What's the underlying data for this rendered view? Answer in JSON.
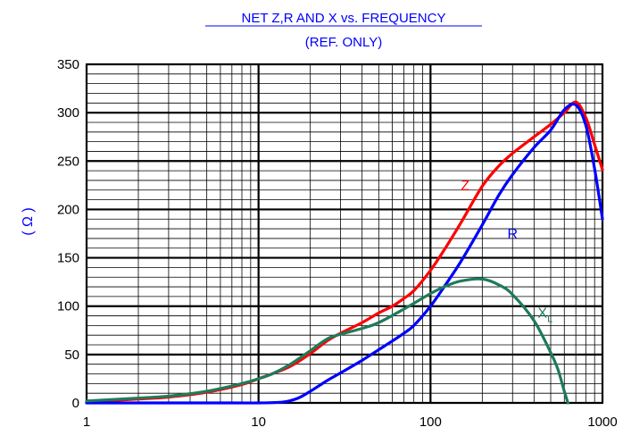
{
  "chart_data": {
    "type": "line",
    "title": "NET Z,R AND X vs. FREQUENCY",
    "subtitle": "(REF. ONLY)",
    "xlabel": "",
    "ylabel": "( Ω )",
    "xscale": "log",
    "xlim": [
      1,
      1000
    ],
    "ylim": [
      0,
      350
    ],
    "x_ticks": [
      1,
      10,
      100,
      1000
    ],
    "y_ticks": [
      0,
      50,
      100,
      150,
      200,
      250,
      300,
      350
    ],
    "grid": {
      "major": true,
      "minor": true
    },
    "legend": "none",
    "title_color": "#0000ff",
    "ylabel_color": "#0000ff",
    "series": [
      {
        "name": "Z",
        "color": "#ff0000",
        "x": [
          1,
          2,
          3,
          5,
          8,
          10,
          15,
          20,
          25,
          30,
          40,
          50,
          60,
          70,
          80,
          100,
          120,
          150,
          200,
          250,
          300,
          400,
          500,
          600,
          700,
          800,
          900,
          1000
        ],
        "y": [
          1,
          4,
          6,
          11,
          19,
          25,
          37,
          51,
          64,
          72,
          83,
          93,
          100,
          108,
          116,
          137,
          158,
          186,
          224,
          245,
          258,
          275,
          288,
          300,
          311,
          295,
          267,
          241
        ]
      },
      {
        "name": "R",
        "color": "#0000ff",
        "x": [
          1,
          5,
          10,
          14,
          17,
          20,
          25,
          30,
          40,
          50,
          60,
          70,
          80,
          100,
          120,
          150,
          200,
          250,
          300,
          400,
          500,
          600,
          700,
          800,
          900,
          1000
        ],
        "y": [
          0,
          0,
          0,
          1,
          5,
          12,
          23,
          31,
          44,
          55,
          64,
          72,
          80,
          100,
          120,
          146,
          184,
          215,
          236,
          264,
          282,
          303,
          308,
          287,
          242,
          190
        ]
      },
      {
        "name": "XL",
        "color": "#1e7b5a",
        "x": [
          1,
          2,
          3,
          5,
          8,
          10,
          12,
          15,
          20,
          25,
          30,
          40,
          50,
          70,
          100,
          120,
          150,
          200,
          250,
          300,
          400,
          500,
          550,
          600,
          630
        ],
        "y": [
          2,
          5,
          7,
          12,
          20,
          25,
          30,
          39,
          54,
          66,
          71,
          77,
          83,
          97,
          113,
          120,
          126,
          128,
          122,
          112,
          85,
          52,
          35,
          12,
          0
        ]
      }
    ],
    "annotations": [
      {
        "text": "Z",
        "series": "Z",
        "x": 150,
        "y": 220,
        "color": "#ff0000"
      },
      {
        "text": "R",
        "series": "R",
        "x": 280,
        "y": 170,
        "color": "#0000ff"
      },
      {
        "text": "X",
        "sub": "L",
        "series": "XL",
        "x": 420,
        "y": 88,
        "color": "#1e7b5a"
      }
    ]
  }
}
